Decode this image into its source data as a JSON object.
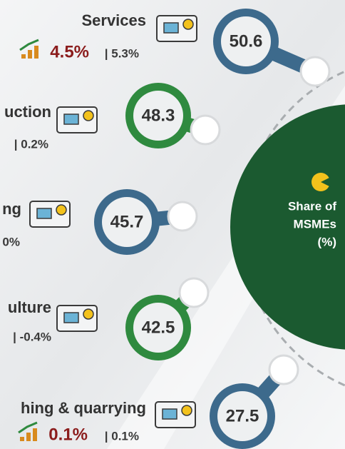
{
  "center": {
    "lines": [
      "Share of",
      "MSMEs",
      "(%)"
    ]
  },
  "items": [
    {
      "label": "Services",
      "primary": "4.5%",
      "secondary": "| 5.3%",
      "value": "50.6"
    },
    {
      "label": "uction",
      "secondary": "| 0.2%",
      "value": "48.3"
    },
    {
      "label": "ng",
      "secondary": "0%",
      "value": "45.7"
    },
    {
      "label": "ulture",
      "secondary": "| -0.4%",
      "value": "42.5"
    },
    {
      "label": "hing & quarrying",
      "primary": "0.1%",
      "secondary": "| 0.1%",
      "value": "27.5"
    }
  ]
}
